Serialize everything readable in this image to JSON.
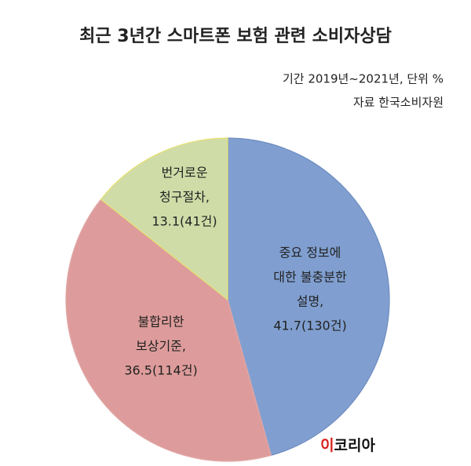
{
  "chart_data": {
    "type": "pie",
    "title": "최근 3년간 스마트폰 보험 관련 소비자상담",
    "subtitle": [
      "기간 2019년~2021년, 단위 %",
      "자료 한국소비자원"
    ],
    "categories": [
      [
        "중요 정보에",
        "대한 불충분한",
        "설명,"
      ],
      [
        "불합리한",
        "보상기준,"
      ],
      [
        "번거로운",
        "청구절차,"
      ]
    ],
    "values": [
      41.7,
      36.5,
      13.1
    ],
    "value_labels": [
      "41.7(130건)",
      "36.5(114건)",
      "13.1(41건)"
    ],
    "colors": [
      "#809fd0",
      "#dd9c9b",
      "#cfdca8"
    ]
  },
  "logo": {
    "mark": "이",
    "text": "코리아"
  }
}
